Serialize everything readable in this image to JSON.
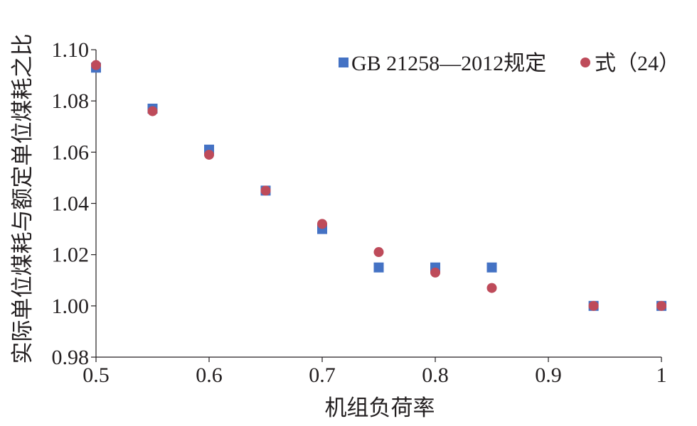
{
  "chart_data": {
    "type": "scatter",
    "xlabel": "机组负荷率",
    "ylabel": "实际单位煤耗与额定单位煤耗之比",
    "xlim": [
      0.5,
      1.0
    ],
    "ylim": [
      0.98,
      1.1
    ],
    "x_ticks": [
      "0.5",
      "0.6",
      "0.7",
      "0.8",
      "0.9",
      "1"
    ],
    "y_ticks": [
      "0.98",
      "1.00",
      "1.02",
      "1.04",
      "1.06",
      "1.08",
      "1.10"
    ],
    "grid": false,
    "legend_position": "top-right",
    "series": [
      {
        "name": "GB 21258—2012规定",
        "marker": "square",
        "color": "#4472c4",
        "points": [
          {
            "x": 0.5,
            "y": 1.093
          },
          {
            "x": 0.55,
            "y": 1.077
          },
          {
            "x": 0.6,
            "y": 1.061
          },
          {
            "x": 0.65,
            "y": 1.045
          },
          {
            "x": 0.7,
            "y": 1.03
          },
          {
            "x": 0.75,
            "y": 1.015
          },
          {
            "x": 0.8,
            "y": 1.015
          },
          {
            "x": 0.85,
            "y": 1.015
          },
          {
            "x": 0.94,
            "y": 1.0
          },
          {
            "x": 1.0,
            "y": 1.0
          }
        ]
      },
      {
        "name": "式（24）",
        "marker": "circle",
        "color": "#be4b5a",
        "points": [
          {
            "x": 0.5,
            "y": 1.094
          },
          {
            "x": 0.55,
            "y": 1.076
          },
          {
            "x": 0.6,
            "y": 1.059
          },
          {
            "x": 0.65,
            "y": 1.045
          },
          {
            "x": 0.7,
            "y": 1.032
          },
          {
            "x": 0.75,
            "y": 1.021
          },
          {
            "x": 0.8,
            "y": 1.013
          },
          {
            "x": 0.85,
            "y": 1.007
          },
          {
            "x": 0.94,
            "y": 1.0
          },
          {
            "x": 1.0,
            "y": 1.0
          }
        ]
      }
    ]
  }
}
